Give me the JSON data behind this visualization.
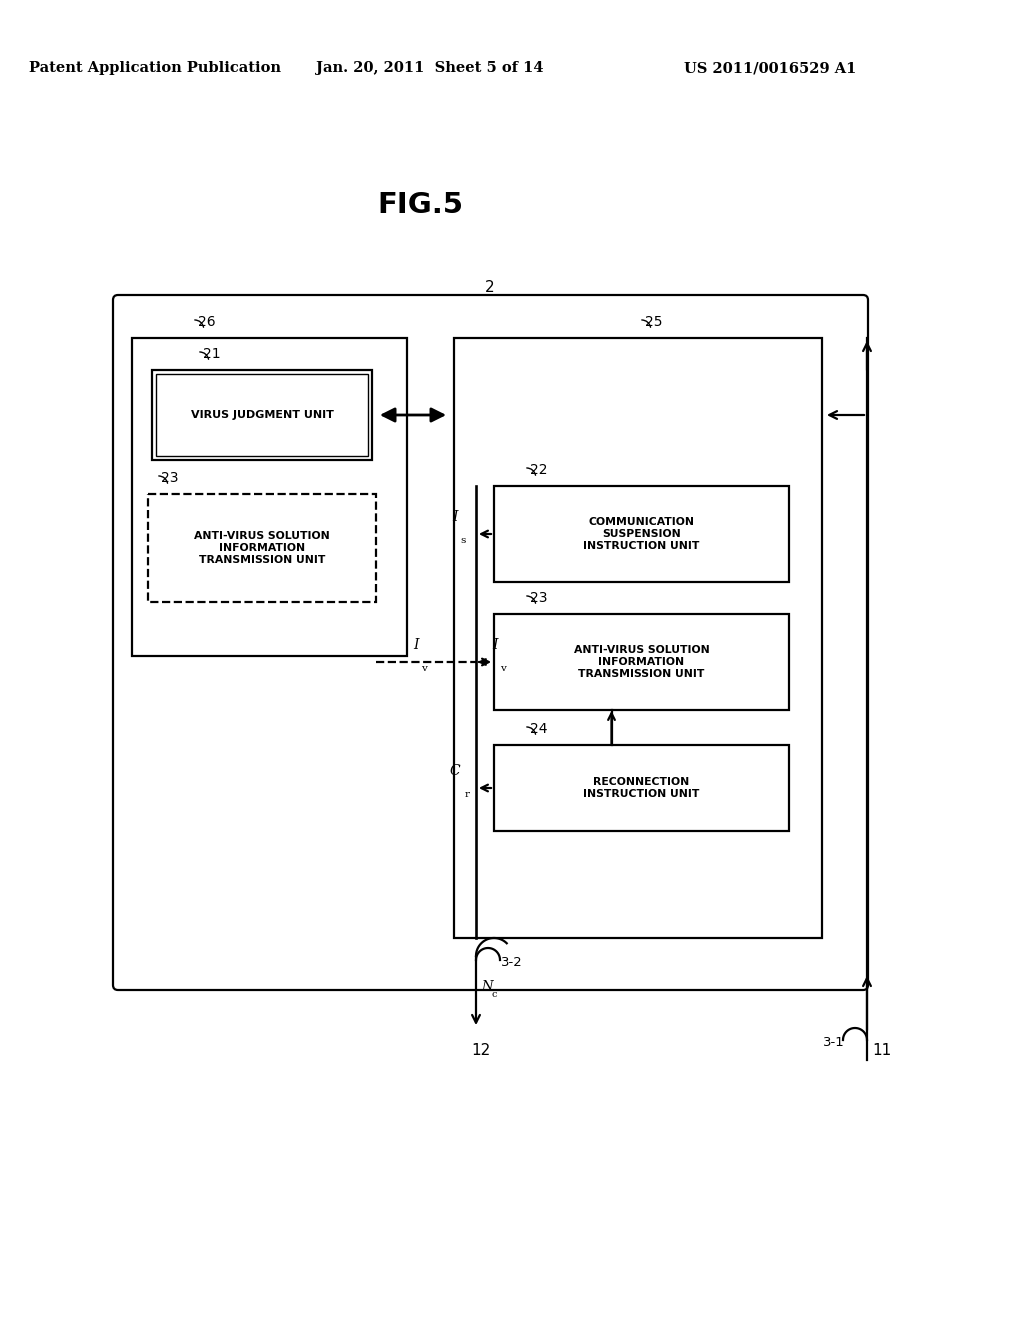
{
  "bg_color": "#ffffff",
  "header_left": "Patent Application Publication",
  "header_center": "Jan. 20, 2011  Sheet 5 of 14",
  "header_right": "US 2011/0016529 A1",
  "fig_title": "FIG.5",
  "lw": 1.6,
  "labels": {
    "outer": "2",
    "b26": "26",
    "b25": "25",
    "b21": "21",
    "b22": "22",
    "b23l": "23",
    "b23r": "23",
    "b24": "24",
    "line31": "3-1",
    "line32": "3-2",
    "node11": "11",
    "node12": "12",
    "text21": "VIRUS JUDGMENT UNIT",
    "text22": "COMMUNICATION\nSUSPENSION\nINSTRUCTION UNIT",
    "text23l": "ANTI-VIRUS SOLUTION\nINFORMATION\nTRANSMISSION UNIT",
    "text23r": "ANTI-VIRUS SOLUTION\nINFORMATION\nTRANSMISSION UNIT",
    "text24": "RECONNECTION\nINSTRUCTION UNIT"
  }
}
